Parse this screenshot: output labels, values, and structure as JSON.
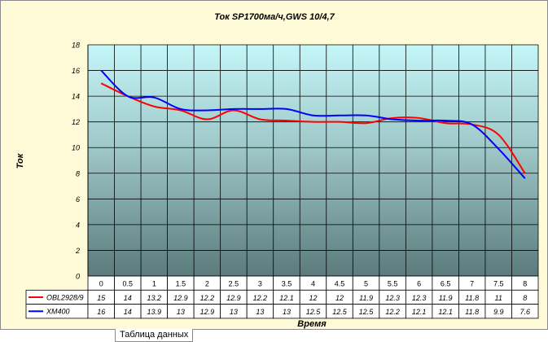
{
  "chart_data": {
    "type": "line",
    "title": "Ток SP1700ма/ч,GWS 10/4,7",
    "xlabel": "Время",
    "ylabel": "Ток",
    "ylim": [
      0,
      18
    ],
    "yticks": [
      0,
      2,
      4,
      6,
      8,
      10,
      12,
      14,
      16,
      18
    ],
    "categories": [
      "0",
      "0.5",
      "1",
      "1.5",
      "2",
      "2.5",
      "3",
      "3.5",
      "4",
      "4.5",
      "5",
      "5.5",
      "6",
      "6.5",
      "7",
      "7.5",
      "8"
    ],
    "series": [
      {
        "name": "OBL2928/9",
        "color": "#ff0000",
        "values": [
          15,
          14,
          13.2,
          12.9,
          12.2,
          12.9,
          12.2,
          12.1,
          12,
          12,
          11.9,
          12.3,
          12.3,
          11.9,
          11.8,
          11,
          8
        ]
      },
      {
        "name": "XM400",
        "color": "#0000ff",
        "values": [
          16,
          14,
          13.9,
          13,
          12.9,
          13,
          13,
          13,
          12.5,
          12.5,
          12.5,
          12.2,
          12.1,
          12.1,
          11.8,
          9.9,
          7.6
        ]
      }
    ],
    "grid": true,
    "legend": "data-table-bottom",
    "data_table": true
  },
  "sheet_tab_label": "Таблица данных"
}
